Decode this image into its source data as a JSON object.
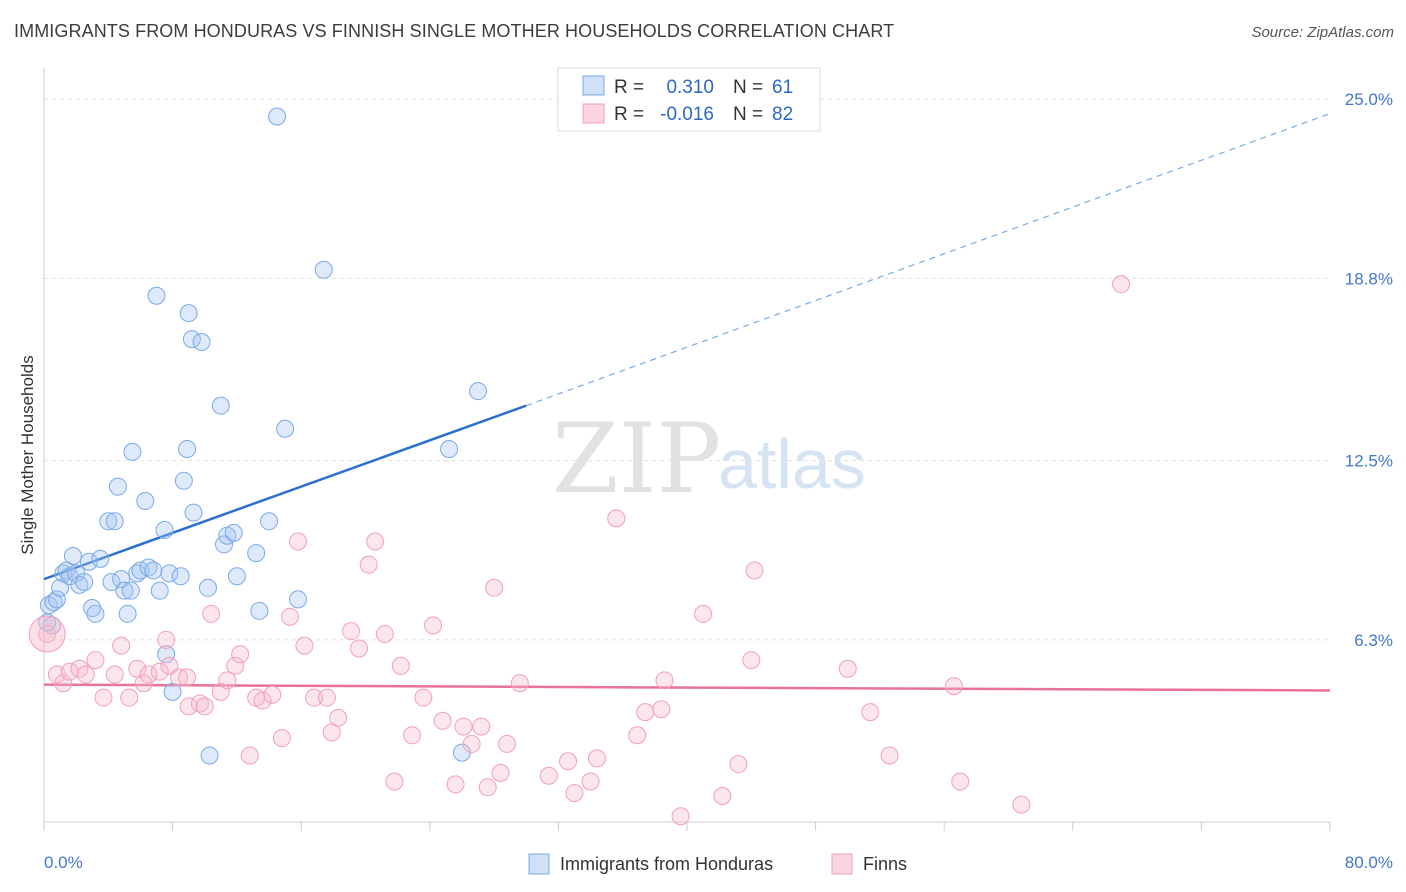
{
  "header": {
    "title": "IMMIGRANTS FROM HONDURAS VS FINNISH SINGLE MOTHER HOUSEHOLDS CORRELATION CHART",
    "source": "Source: ZipAtlas.com"
  },
  "watermark": {
    "zip": "ZIP",
    "atlas": "atlas"
  },
  "legend": {
    "r_label": "R =",
    "n_label": "N =",
    "rows": [
      {
        "r": "0.310",
        "n": "61",
        "color": "#7aaae8"
      },
      {
        "r": "-0.016",
        "n": "82",
        "color": "#f2a0b8"
      }
    ]
  },
  "bottom_legend": [
    {
      "label": "Immigrants from Honduras",
      "color": "#7aaae8"
    },
    {
      "label": "Finns",
      "color": "#f2a0b8"
    }
  ],
  "chart_data": {
    "type": "scatter",
    "title": "IMMIGRANTS FROM HONDURAS VS FINNISH SINGLE MOTHER HOUSEHOLDS CORRELATION CHART",
    "xlabel": "",
    "ylabel": "Single Mother Households",
    "xlim": [
      0,
      80
    ],
    "ylim": [
      0,
      25.8
    ],
    "x_tick_labels": [
      "0.0%",
      "80.0%"
    ],
    "y_ticks": [
      6.3,
      12.5,
      18.8,
      25.0
    ],
    "y_tick_labels": [
      "6.3%",
      "12.5%",
      "18.8%",
      "25.0%"
    ],
    "grid": true,
    "legend_position": "top-center",
    "series": [
      {
        "name": "Immigrants from Honduras",
        "color": "#7aaae8",
        "r": 0.31,
        "n": 61,
        "trend": {
          "x0": 0,
          "y0": 8.4,
          "x1": 30,
          "y1": 14.4,
          "x_extend": 80,
          "y_extend": 24.5
        },
        "points": [
          [
            0.3,
            7.5
          ],
          [
            0.5,
            6.8
          ],
          [
            0.6,
            7.6
          ],
          [
            0.8,
            7.7
          ],
          [
            1.0,
            8.1
          ],
          [
            1.2,
            8.6
          ],
          [
            1.4,
            8.7
          ],
          [
            1.6,
            8.5
          ],
          [
            1.8,
            9.2
          ],
          [
            2.0,
            8.6
          ],
          [
            2.2,
            8.2
          ],
          [
            2.5,
            8.3
          ],
          [
            2.8,
            9.0
          ],
          [
            3.0,
            7.4
          ],
          [
            3.2,
            7.2
          ],
          [
            3.5,
            9.1
          ],
          [
            4.0,
            10.4
          ],
          [
            4.2,
            8.3
          ],
          [
            4.4,
            10.4
          ],
          [
            4.6,
            11.6
          ],
          [
            4.8,
            8.4
          ],
          [
            5.0,
            8.0
          ],
          [
            5.2,
            7.2
          ],
          [
            5.4,
            8.0
          ],
          [
            5.5,
            12.8
          ],
          [
            5.8,
            8.6
          ],
          [
            6.0,
            8.7
          ],
          [
            6.3,
            11.1
          ],
          [
            6.5,
            8.8
          ],
          [
            6.8,
            8.7
          ],
          [
            7.0,
            18.2
          ],
          [
            7.2,
            8.0
          ],
          [
            7.5,
            10.1
          ],
          [
            7.6,
            5.8
          ],
          [
            7.8,
            8.6
          ],
          [
            8.0,
            4.5
          ],
          [
            8.5,
            8.5
          ],
          [
            8.7,
            11.8
          ],
          [
            8.9,
            12.9
          ],
          [
            9.0,
            17.6
          ],
          [
            9.2,
            16.7
          ],
          [
            9.3,
            10.7
          ],
          [
            9.8,
            16.6
          ],
          [
            10.2,
            8.1
          ],
          [
            10.3,
            2.3
          ],
          [
            11.0,
            14.4
          ],
          [
            11.2,
            9.6
          ],
          [
            11.4,
            9.9
          ],
          [
            11.8,
            10.0
          ],
          [
            12.0,
            8.5
          ],
          [
            13.2,
            9.3
          ],
          [
            13.4,
            7.3
          ],
          [
            14.0,
            10.4
          ],
          [
            14.5,
            24.4
          ],
          [
            15.0,
            13.6
          ],
          [
            15.8,
            7.7
          ],
          [
            17.4,
            19.1
          ],
          [
            25.2,
            12.9
          ],
          [
            26.0,
            2.4
          ],
          [
            27.0,
            14.9
          ],
          [
            0.2,
            6.9
          ]
        ]
      },
      {
        "name": "Finns",
        "color": "#f2a0b8",
        "r": -0.016,
        "n": 82,
        "trend": {
          "x0": 0,
          "y0": 4.75,
          "x1": 80,
          "y1": 4.55
        },
        "points": [
          [
            0.2,
            6.5
          ],
          [
            0.8,
            5.1
          ],
          [
            1.2,
            4.8
          ],
          [
            1.6,
            5.2
          ],
          [
            2.2,
            5.3
          ],
          [
            2.6,
            5.1
          ],
          [
            3.2,
            5.6
          ],
          [
            3.7,
            4.3
          ],
          [
            4.4,
            5.1
          ],
          [
            4.8,
            6.1
          ],
          [
            5.3,
            4.3
          ],
          [
            5.8,
            5.3
          ],
          [
            6.2,
            4.8
          ],
          [
            6.5,
            5.1
          ],
          [
            7.2,
            5.2
          ],
          [
            7.6,
            6.3
          ],
          [
            7.8,
            5.4
          ],
          [
            8.4,
            5.0
          ],
          [
            8.9,
            5.0
          ],
          [
            9.0,
            4.0
          ],
          [
            9.7,
            4.1
          ],
          [
            10.0,
            4.0
          ],
          [
            10.4,
            7.2
          ],
          [
            11.0,
            4.5
          ],
          [
            11.4,
            4.9
          ],
          [
            11.9,
            5.4
          ],
          [
            12.2,
            5.8
          ],
          [
            12.8,
            2.3
          ],
          [
            13.2,
            4.3
          ],
          [
            13.6,
            4.2
          ],
          [
            14.2,
            4.4
          ],
          [
            14.8,
            2.9
          ],
          [
            15.3,
            7.1
          ],
          [
            15.8,
            9.7
          ],
          [
            16.2,
            6.1
          ],
          [
            16.8,
            4.3
          ],
          [
            17.6,
            4.3
          ],
          [
            17.9,
            3.1
          ],
          [
            18.3,
            3.6
          ],
          [
            19.1,
            6.6
          ],
          [
            19.6,
            6.0
          ],
          [
            20.2,
            8.9
          ],
          [
            20.6,
            9.7
          ],
          [
            21.2,
            6.5
          ],
          [
            21.8,
            1.4
          ],
          [
            22.2,
            5.4
          ],
          [
            22.9,
            3.0
          ],
          [
            23.6,
            4.3
          ],
          [
            24.2,
            6.8
          ],
          [
            24.8,
            3.5
          ],
          [
            25.6,
            1.3
          ],
          [
            26.1,
            3.3
          ],
          [
            26.6,
            2.7
          ],
          [
            27.2,
            3.3
          ],
          [
            27.6,
            1.2
          ],
          [
            28.0,
            8.1
          ],
          [
            28.4,
            1.7
          ],
          [
            28.8,
            2.7
          ],
          [
            29.6,
            4.8
          ],
          [
            31.4,
            1.6
          ],
          [
            32.6,
            2.1
          ],
          [
            33.0,
            1.0
          ],
          [
            34.0,
            1.4
          ],
          [
            34.4,
            2.2
          ],
          [
            35.6,
            10.5
          ],
          [
            36.9,
            3.0
          ],
          [
            37.4,
            3.8
          ],
          [
            38.4,
            3.9
          ],
          [
            38.6,
            4.9
          ],
          [
            39.6,
            0.2
          ],
          [
            41.0,
            7.2
          ],
          [
            42.2,
            0.9
          ],
          [
            43.2,
            2.0
          ],
          [
            44.0,
            5.6
          ],
          [
            44.2,
            8.7
          ],
          [
            50.0,
            5.3
          ],
          [
            51.4,
            3.8
          ],
          [
            52.6,
            2.3
          ],
          [
            56.6,
            4.7
          ],
          [
            57.0,
            1.4
          ],
          [
            67.0,
            18.6
          ],
          [
            60.8,
            0.6
          ]
        ]
      }
    ]
  }
}
